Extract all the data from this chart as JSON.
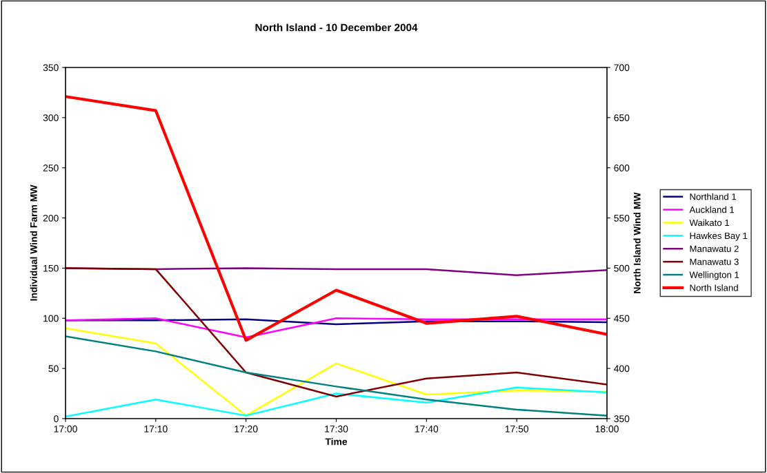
{
  "chart_data": {
    "type": "line",
    "title": "North Island - 10 December 2004",
    "xlabel": "Time",
    "ylabel": "Individual Wind Farm MW",
    "y2label": "North Island Wind MW",
    "categories": [
      "17:00",
      "17:10",
      "17:20",
      "17:30",
      "17:40",
      "17:50",
      "18:00"
    ],
    "ylim": [
      0,
      350
    ],
    "yticks": [
      0,
      50,
      100,
      150,
      200,
      250,
      300,
      350
    ],
    "y2lim": [
      350,
      700
    ],
    "y2ticks": [
      350,
      400,
      450,
      500,
      550,
      600,
      650,
      700
    ],
    "grid": false,
    "legend": "right",
    "marker": "none",
    "line_style": "solid",
    "series": [
      {
        "name": "Northland 1",
        "color": "#000080",
        "values": [
          98,
          98,
          99,
          94,
          97,
          97,
          96
        ]
      },
      {
        "name": "Auckland 1",
        "color": "#ff00ff",
        "values": [
          98,
          100,
          81,
          100,
          99,
          99,
          99
        ]
      },
      {
        "name": "Waikato 1",
        "color": "#ffff00",
        "values": [
          90,
          75,
          3,
          55,
          24,
          28,
          27
        ]
      },
      {
        "name": "Hawkes Bay 1",
        "color": "#00ffff",
        "values": [
          2,
          19,
          3,
          25,
          16,
          31,
          26
        ]
      },
      {
        "name": "Manawatu 2",
        "color": "#800080",
        "values": [
          150,
          149,
          150,
          149,
          149,
          143,
          148
        ]
      },
      {
        "name": "Manawatu 3",
        "color": "#800000",
        "values": [
          150,
          149,
          46,
          22,
          40,
          46,
          34
        ]
      },
      {
        "name": "Wellington 1",
        "color": "#008080",
        "values": [
          82,
          67,
          46,
          32,
          19,
          9,
          3
        ]
      },
      {
        "name": "North Island",
        "color": "#ff0000",
        "axis": "y2",
        "values": [
          671,
          657,
          428,
          478,
          445,
          452,
          434
        ]
      }
    ]
  }
}
